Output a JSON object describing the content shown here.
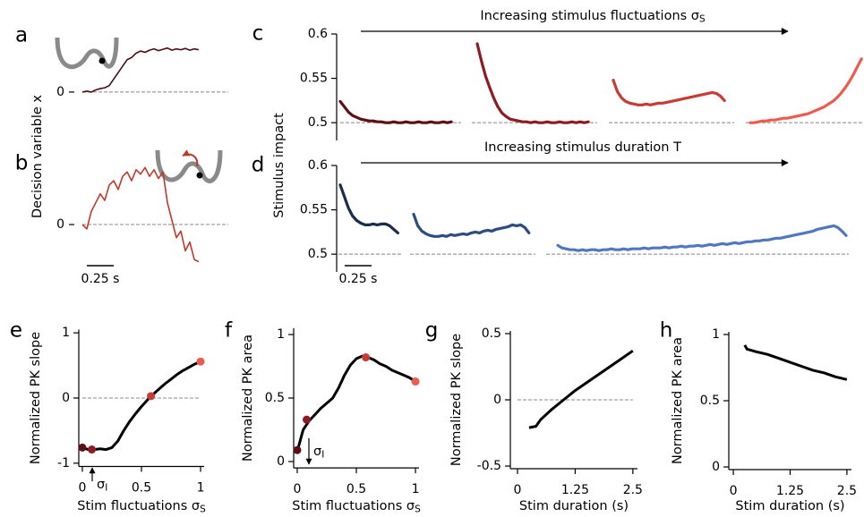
{
  "chart_data": [
    {
      "type": "line",
      "panel": "a",
      "ylabel": "Decision variable x",
      "ylim": [
        -0.25,
        1.2
      ],
      "yticks": [
        0
      ],
      "series": [
        {
          "color": "#4a0d12",
          "values": [
            0,
            0.02,
            0.0,
            0.05,
            0.08,
            0.1,
            0.15,
            0.3,
            0.45,
            0.6,
            0.75,
            0.8,
            0.9,
            0.95,
            0.92,
            0.97,
            1.0,
            0.96,
            0.99,
            1.02,
            0.97,
            1.0,
            0.98,
            1.01,
            0.97,
            1.0,
            0.98
          ]
        }
      ]
    },
    {
      "type": "line",
      "panel": "b",
      "ylim": [
        -1,
        1.45
      ],
      "yticks": [
        0
      ],
      "scalebar_label": "0.25 s",
      "series": [
        {
          "color": "#c0392b",
          "values": [
            0,
            -0.1,
            0.3,
            0.5,
            0.7,
            0.55,
            0.9,
            1.0,
            0.8,
            1.1,
            1.2,
            1.0,
            1.25,
            1.15,
            1.3,
            1.1,
            1.25,
            1.05,
            1.2,
            0.5,
            0.1,
            -0.3,
            -0.15,
            -0.6,
            -0.4,
            -0.8,
            -0.85
          ]
        }
      ]
    },
    {
      "type": "line",
      "panel": "c",
      "ylabel": "Stimulus impact",
      "annotation": "Increasing stimulus fluctuations σ",
      "annotation_sub": "S",
      "ylim": [
        0.48,
        0.6
      ],
      "yticks": [
        0.5,
        0.55,
        0.6
      ],
      "series": [
        {
          "color": "#5c1016",
          "values": [
            0.524,
            0.518,
            0.512,
            0.508,
            0.506,
            0.504,
            0.503,
            0.502,
            0.502,
            0.501,
            0.501,
            0.5,
            0.5,
            0.501,
            0.5,
            0.5,
            0.501,
            0.5,
            0.5,
            0.501,
            0.5,
            0.5,
            0.501,
            0.5,
            0.5,
            0.501,
            0.5,
            0.501
          ]
        },
        {
          "color": "#8e1b22",
          "values": [
            0.589,
            0.57,
            0.553,
            0.54,
            0.528,
            0.518,
            0.511,
            0.507,
            0.504,
            0.503,
            0.502,
            0.501,
            0.501,
            0.5,
            0.501,
            0.5,
            0.5,
            0.501,
            0.5,
            0.5,
            0.501,
            0.5,
            0.5,
            0.501,
            0.5,
            0.501,
            0.5,
            0.501
          ]
        },
        {
          "color": "#c83a33",
          "values": [
            0.548,
            0.535,
            0.528,
            0.524,
            0.522,
            0.521,
            0.52,
            0.52,
            0.521,
            0.52,
            0.521,
            0.522,
            0.522,
            0.523,
            0.524,
            0.525,
            0.526,
            0.527,
            0.528,
            0.529,
            0.53,
            0.531,
            0.532,
            0.533,
            0.534,
            0.533,
            0.53,
            0.525
          ]
        },
        {
          "color": "#ef5a4f",
          "values": [
            0.5,
            0.5,
            0.501,
            0.502,
            0.502,
            0.503,
            0.503,
            0.504,
            0.505,
            0.505,
            0.506,
            0.507,
            0.508,
            0.509,
            0.51,
            0.512,
            0.514,
            0.516,
            0.518,
            0.521,
            0.524,
            0.528,
            0.533,
            0.539,
            0.546,
            0.554,
            0.563,
            0.572
          ]
        }
      ]
    },
    {
      "type": "line",
      "panel": "d",
      "annotation": "Increasing stimulus duration T",
      "scalebar_label": "0.25 s",
      "ylim": [
        0.48,
        0.6
      ],
      "yticks": [
        0.5,
        0.55,
        0.6
      ],
      "series": [
        {
          "color": "#1c2c4c",
          "values": [
            0.578,
            0.565,
            0.552,
            0.543,
            0.538,
            0.535,
            0.533,
            0.533,
            0.534,
            0.533,
            0.534,
            0.534,
            0.532,
            0.528,
            0.524
          ]
        },
        {
          "color": "#2d4d80",
          "values": [
            0.545,
            0.532,
            0.526,
            0.523,
            0.521,
            0.52,
            0.52,
            0.521,
            0.52,
            0.522,
            0.521,
            0.522,
            0.523,
            0.522,
            0.524,
            0.525,
            0.524,
            0.526,
            0.527,
            0.526,
            0.528,
            0.529,
            0.53,
            0.531,
            0.533,
            0.532,
            0.533,
            0.53,
            0.524
          ]
        },
        {
          "color": "#5078bf",
          "values": [
            0.51,
            0.507,
            0.506,
            0.505,
            0.505,
            0.504,
            0.505,
            0.504,
            0.505,
            0.505,
            0.504,
            0.505,
            0.505,
            0.506,
            0.505,
            0.505,
            0.506,
            0.505,
            0.506,
            0.506,
            0.506,
            0.507,
            0.506,
            0.507,
            0.507,
            0.507,
            0.508,
            0.507,
            0.508,
            0.508,
            0.509,
            0.508,
            0.509,
            0.509,
            0.51,
            0.509,
            0.51,
            0.511,
            0.51,
            0.511,
            0.512,
            0.511,
            0.512,
            0.513,
            0.512,
            0.513,
            0.514,
            0.514,
            0.515,
            0.515,
            0.516,
            0.516,
            0.517,
            0.518,
            0.518,
            0.519,
            0.52,
            0.521,
            0.522,
            0.523,
            0.524,
            0.525,
            0.526,
            0.528,
            0.529,
            0.53,
            0.531,
            0.532,
            0.53,
            0.526,
            0.521
          ]
        }
      ]
    },
    {
      "type": "line",
      "panel": "e",
      "ylabel": "Normalized PK slope",
      "xlabel": "Stim fluctuations σ",
      "xlabel_sub": "S",
      "annotation": "σ",
      "annotation_sub": "I",
      "zero_line": true,
      "color": "#000000",
      "xlim": [
        -0.03,
        1.03
      ],
      "xticks": [
        0,
        0.5,
        1
      ],
      "ylim": [
        -1.05,
        1.05
      ],
      "yticks": [
        1,
        0,
        -1
      ],
      "x": [
        0,
        0.05,
        0.1,
        0.15,
        0.2,
        0.25,
        0.3,
        0.35,
        0.4,
        0.45,
        0.5,
        0.55,
        0.6,
        0.65,
        0.7,
        0.75,
        0.8,
        0.85,
        0.9,
        0.95,
        1
      ],
      "values": [
        -0.76,
        -0.79,
        -0.79,
        -0.78,
        -0.79,
        -0.76,
        -0.66,
        -0.5,
        -0.36,
        -0.24,
        -0.13,
        -0.03,
        0.06,
        0.14,
        0.22,
        0.29,
        0.36,
        0.42,
        0.47,
        0.52,
        0.56
      ],
      "points": {
        "x": [
          0,
          0.08,
          0.58,
          1
        ],
        "values": [
          -0.76,
          -0.79,
          0.03,
          0.56
        ],
        "colors": [
          "#5c1016",
          "#8e1b22",
          "#c83a33",
          "#ef5a4f"
        ]
      }
    },
    {
      "type": "line",
      "panel": "f",
      "ylabel": "Normalized PK area",
      "xlabel": "Stim fluctuations σ",
      "xlabel_sub": "S",
      "annotation": "σ",
      "annotation_sub": "I",
      "color": "#000000",
      "xlim": [
        -0.03,
        1.03
      ],
      "xticks": [
        0,
        0.5,
        1
      ],
      "ylim": [
        -0.05,
        1.05
      ],
      "yticks": [
        1,
        0.5,
        0
      ],
      "x": [
        0,
        0.05,
        0.1,
        0.15,
        0.2,
        0.25,
        0.3,
        0.35,
        0.4,
        0.45,
        0.5,
        0.55,
        0.6,
        0.65,
        0.7,
        0.75,
        0.8,
        0.85,
        0.9,
        0.95,
        1
      ],
      "values": [
        0.08,
        0.25,
        0.32,
        0.37,
        0.42,
        0.46,
        0.5,
        0.58,
        0.68,
        0.76,
        0.81,
        0.83,
        0.82,
        0.8,
        0.77,
        0.75,
        0.72,
        0.7,
        0.68,
        0.66,
        0.63
      ],
      "points": {
        "x": [
          0,
          0.08,
          0.58,
          1
        ],
        "values": [
          0.09,
          0.33,
          0.82,
          0.63
        ],
        "colors": [
          "#5c1016",
          "#8e1b22",
          "#c83a33",
          "#ef5a4f"
        ]
      }
    },
    {
      "type": "line",
      "panel": "g",
      "ylabel": "Normalized PK slope",
      "xlabel": "Stim duration (s)",
      "zero_line": true,
      "color": "#000000",
      "xlim": [
        -0.155,
        2.6
      ],
      "xticks": [
        0,
        1.25,
        2.5
      ],
      "ylim": [
        -0.52,
        0.52
      ],
      "yticks": [
        0.5,
        0,
        -0.5
      ],
      "x": [
        0.25,
        0.4,
        0.5,
        0.75,
        1,
        1.25,
        1.5,
        1.75,
        2,
        2.25,
        2.5
      ],
      "values": [
        -0.21,
        -0.2,
        -0.15,
        -0.07,
        0.0,
        0.07,
        0.13,
        0.19,
        0.25,
        0.31,
        0.37
      ]
    },
    {
      "type": "line",
      "panel": "h",
      "ylabel": "Normalized PK area",
      "xlabel": "Stim duration (s)",
      "color": "#000000",
      "xlim": [
        -0.1,
        2.6
      ],
      "xticks": [
        0,
        1.25,
        2.5
      ],
      "ylim": [
        -0.02,
        1.02
      ],
      "yticks": [
        1,
        0.5,
        0
      ],
      "x": [
        0.25,
        0.3,
        0.5,
        0.75,
        1,
        1.25,
        1.5,
        1.75,
        2,
        2.25,
        2.5
      ],
      "values": [
        0.92,
        0.89,
        0.87,
        0.85,
        0.82,
        0.79,
        0.76,
        0.73,
        0.71,
        0.68,
        0.66
      ]
    }
  ]
}
